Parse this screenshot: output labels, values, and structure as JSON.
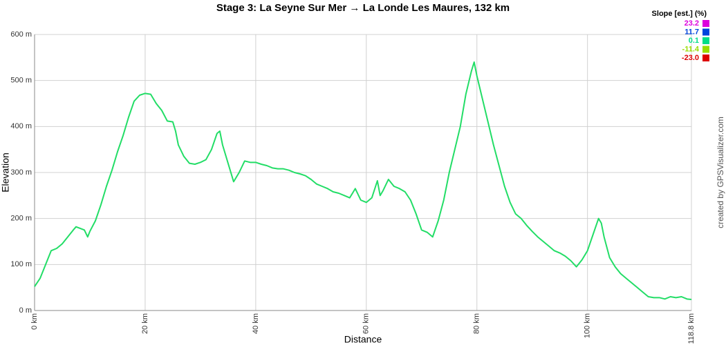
{
  "chart_data": {
    "type": "line",
    "title": "Stage 3: La Seyne Sur Mer → La Londe Les Maures, 132 km",
    "x_label": "Distance",
    "y_label": "Elevation",
    "credit": "created by GPSVisualizer.com",
    "legend_title": "Slope [est.] (%)",
    "legend": [
      {
        "label": "23.2",
        "color": "#dd00dd"
      },
      {
        "label": "11.7",
        "color": "#0044dd"
      },
      {
        "label": "0.1",
        "color": "#00dd88"
      },
      {
        "label": "-11.4",
        "color": "#99dd00"
      },
      {
        "label": "-23.0",
        "color": "#dd0000"
      }
    ],
    "grid": true,
    "xlim": [
      0,
      118.8
    ],
    "ylim": [
      0,
      600
    ],
    "xticks": [
      {
        "value": 0,
        "label": "0 km"
      },
      {
        "value": 20,
        "label": "20 km"
      },
      {
        "value": 40,
        "label": "40 km"
      },
      {
        "value": 60,
        "label": "60 km"
      },
      {
        "value": 80,
        "label": "80 km"
      },
      {
        "value": 100,
        "label": "100 km"
      },
      {
        "value": 118.8,
        "label": "118.8 km"
      }
    ],
    "yticks": [
      {
        "value": 0,
        "label": "0 m"
      },
      {
        "value": 100,
        "label": "100 m"
      },
      {
        "value": 200,
        "label": "200 m"
      },
      {
        "value": 300,
        "label": "300 m"
      },
      {
        "value": 400,
        "label": "400 m"
      },
      {
        "value": 500,
        "label": "500 m"
      },
      {
        "value": 600,
        "label": "600 m"
      }
    ],
    "series": [
      {
        "name": "Elevation",
        "color": "#22dd66",
        "x": [
          0,
          1,
          2,
          3,
          4,
          5,
          6,
          7,
          7.5,
          9,
          9.6,
          10,
          11,
          12,
          13,
          14,
          15,
          16,
          17,
          18,
          19,
          20,
          21,
          22,
          23,
          24,
          25,
          25.5,
          26,
          27,
          28,
          29,
          30,
          31,
          32,
          33,
          33.5,
          34,
          35,
          35.5,
          36,
          37,
          38,
          39,
          40,
          41,
          42,
          43,
          44,
          45,
          46,
          47,
          48,
          49,
          50,
          51,
          52,
          53,
          54,
          55,
          56,
          57,
          58,
          59,
          60,
          61,
          62,
          62.5,
          63,
          64,
          65,
          66,
          67,
          68,
          69,
          70,
          71,
          72,
          73,
          74,
          75,
          76,
          77,
          78,
          79,
          79.5,
          80,
          81,
          82,
          83,
          84,
          85,
          86,
          87,
          88,
          89,
          90,
          91,
          92,
          93,
          94,
          95,
          96,
          97,
          98,
          99,
          100,
          101,
          102,
          102.5,
          103,
          104,
          105,
          106,
          107,
          108,
          109,
          110,
          111,
          112,
          113,
          114,
          115,
          116,
          117,
          118,
          118.8
        ],
        "values": [
          52,
          70,
          100,
          130,
          135,
          145,
          160,
          175,
          182,
          175,
          160,
          172,
          195,
          230,
          270,
          305,
          345,
          380,
          420,
          455,
          468,
          472,
          470,
          450,
          435,
          412,
          410,
          390,
          360,
          335,
          320,
          318,
          322,
          328,
          350,
          385,
          390,
          360,
          320,
          300,
          280,
          300,
          325,
          322,
          322,
          318,
          315,
          310,
          308,
          308,
          305,
          300,
          297,
          293,
          285,
          275,
          270,
          265,
          258,
          255,
          250,
          245,
          265,
          240,
          235,
          245,
          282,
          250,
          260,
          285,
          270,
          265,
          258,
          240,
          210,
          175,
          170,
          160,
          195,
          240,
          300,
          350,
          400,
          470,
          520,
          540,
          510,
          460,
          410,
          360,
          315,
          270,
          235,
          210,
          200,
          185,
          172,
          160,
          150,
          140,
          130,
          125,
          118,
          108,
          95,
          110,
          130,
          165,
          200,
          190,
          160,
          115,
          95,
          80,
          70,
          60,
          50,
          40,
          30,
          28,
          28,
          25,
          30,
          28,
          30,
          25,
          24
        ]
      }
    ]
  }
}
